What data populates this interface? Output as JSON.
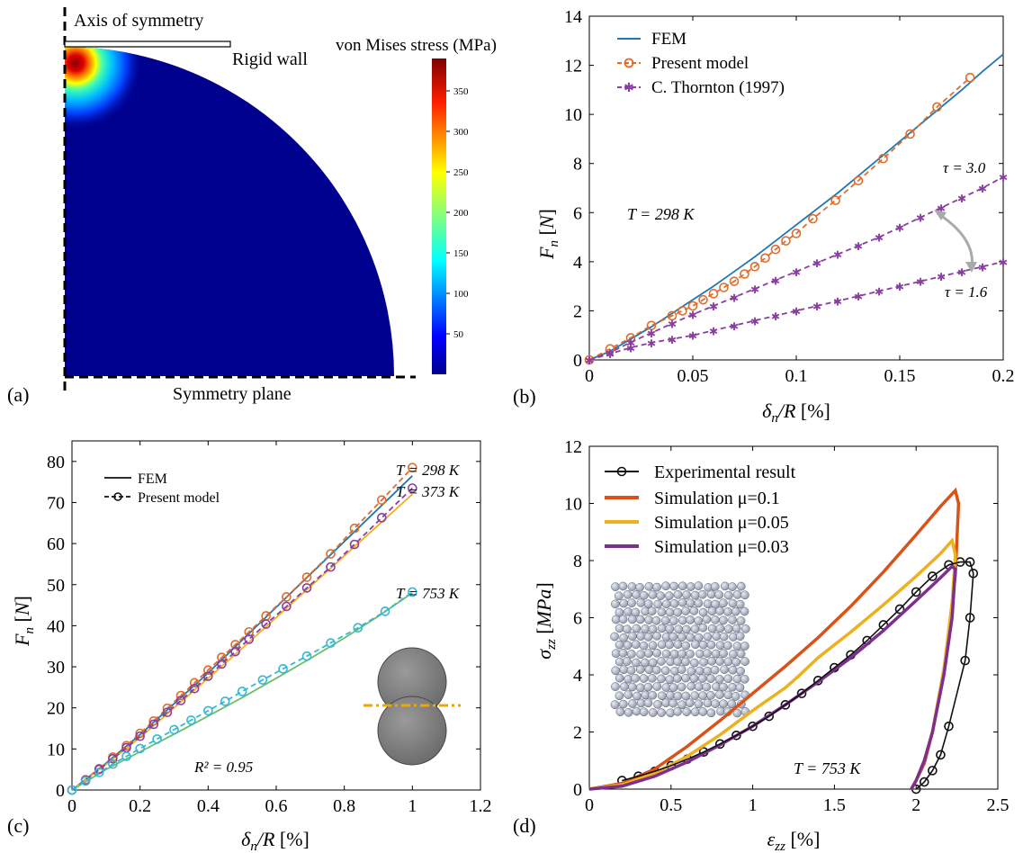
{
  "panels": {
    "a": {
      "label": "(a)",
      "axis_of_symmetry": "Axis of symmetry",
      "rigid_wall": "Rigid wall",
      "symmetry_plane": "Symmetry plane",
      "colorbar_title": "von Mises stress (MPa)",
      "colorbar_ticks": [
        "50",
        "100",
        "150",
        "200",
        "250",
        "300",
        "350"
      ],
      "colorbar_range": [
        0,
        390
      ],
      "colors": {
        "field": "#00008f",
        "hot": "#b40000"
      }
    },
    "b": {
      "label": "(b)",
      "annotation": "T = 298 K",
      "tau_high": "τ = 3.0",
      "tau_low": "τ = 1.6"
    },
    "c": {
      "label": "(c)",
      "r2": "R² = 0.95",
      "t298": "T = 298 K",
      "t373": "T = 373 K",
      "t753": "T = 753 K"
    },
    "d": {
      "label": "(d)",
      "annotation": "T = 753 K"
    }
  },
  "chart_data": [
    {
      "panel": "b",
      "type": "line",
      "xlabel": "δn/R [%]",
      "ylabel": "Fn [N]",
      "xlim": [
        0,
        0.2
      ],
      "ylim": [
        0,
        14
      ],
      "xticks": [
        "0",
        "0.05",
        "0.1",
        "0.15",
        "0.2"
      ],
      "yticks": [
        "0",
        "2",
        "4",
        "6",
        "8",
        "10",
        "12",
        "14"
      ],
      "legend_position": "top-left",
      "series": [
        {
          "name": "FEM",
          "style": "solid",
          "color": "#1f77b4",
          "x": [
            0,
            0.01,
            0.02,
            0.03,
            0.04,
            0.05,
            0.06,
            0.07,
            0.08,
            0.09,
            0.1,
            0.11,
            0.12,
            0.13,
            0.14,
            0.15,
            0.16,
            0.17,
            0.18,
            0.19,
            0.2
          ],
          "y": [
            0,
            0.35,
            0.85,
            1.35,
            1.9,
            2.45,
            3.0,
            3.6,
            4.2,
            4.85,
            5.5,
            6.15,
            6.8,
            7.5,
            8.2,
            8.9,
            9.6,
            10.3,
            11.0,
            11.75,
            12.45
          ]
        },
        {
          "name": "Present model",
          "style": "dashed-circle",
          "color": "#e06c2c",
          "x": [
            0,
            0.01,
            0.02,
            0.03,
            0.04,
            0.045,
            0.05,
            0.055,
            0.06,
            0.065,
            0.07,
            0.075,
            0.08,
            0.085,
            0.09,
            0.095,
            0.1,
            0.108,
            0.119,
            0.13,
            0.142,
            0.155,
            0.168,
            0.184
          ],
          "y": [
            0,
            0.45,
            0.9,
            1.4,
            1.8,
            2.0,
            2.2,
            2.45,
            2.7,
            2.95,
            3.2,
            3.5,
            3.8,
            4.15,
            4.5,
            4.85,
            5.15,
            5.75,
            6.5,
            7.3,
            8.2,
            9.2,
            10.3,
            11.5
          ]
        },
        {
          "name": "C. Thornton (1997)",
          "style": "dashed-star",
          "color": "#8a3fa0",
          "x": [
            0,
            0.01,
            0.02,
            0.03,
            0.04,
            0.05,
            0.06,
            0.07,
            0.08,
            0.09,
            0.1,
            0.11,
            0.12,
            0.13,
            0.14,
            0.15,
            0.16,
            0.17,
            0.18,
            0.19,
            0.2
          ],
          "y": [
            0,
            0.3,
            0.72,
            1.1,
            1.48,
            1.85,
            2.2,
            2.55,
            2.9,
            3.25,
            3.6,
            3.95,
            4.3,
            4.65,
            5.0,
            5.4,
            5.8,
            6.2,
            6.6,
            7.0,
            7.45
          ]
        },
        {
          "name": "",
          "style": "dashed-star",
          "color": "#8a3fa0",
          "x": [
            0,
            0.01,
            0.02,
            0.03,
            0.04,
            0.05,
            0.06,
            0.07,
            0.08,
            0.09,
            0.1,
            0.11,
            0.12,
            0.13,
            0.14,
            0.15,
            0.16,
            0.17,
            0.18,
            0.19,
            0.2
          ],
          "y": [
            0,
            0.25,
            0.5,
            0.7,
            0.85,
            1.0,
            1.2,
            1.4,
            1.6,
            1.8,
            2.0,
            2.2,
            2.4,
            2.6,
            2.8,
            3.0,
            3.2,
            3.4,
            3.6,
            3.8,
            4.0
          ]
        }
      ]
    },
    {
      "panel": "c",
      "type": "line",
      "xlabel": "δn/R [%]",
      "ylabel": "Fn [N]",
      "xlim": [
        0,
        1.2
      ],
      "ylim": [
        0,
        85
      ],
      "xticks": [
        "0",
        "0.2",
        "0.4",
        "0.6",
        "0.8",
        "1",
        "1.2"
      ],
      "yticks": [
        "0",
        "10",
        "20",
        "30",
        "40",
        "50",
        "60",
        "70",
        "80"
      ],
      "legend_position": "top-left",
      "legend": [
        "FEM",
        "Present model"
      ],
      "series": [
        {
          "name": "",
          "style": "solid",
          "color": "#1f77b4",
          "x": [
            0,
            0.1,
            0.2,
            0.3,
            0.4,
            0.5,
            0.6,
            0.7,
            0.8,
            0.9,
            1.0
          ],
          "y": [
            0,
            6.5,
            13.5,
            21.0,
            28.5,
            36.5,
            44.5,
            52.5,
            60.5,
            68.5,
            76.5
          ]
        },
        {
          "name": "",
          "style": "solid",
          "color": "#f2b01e",
          "x": [
            0,
            0.1,
            0.2,
            0.3,
            0.4,
            0.5,
            0.6,
            0.7,
            0.8,
            0.9,
            1.0
          ],
          "y": [
            0,
            6.2,
            12.8,
            20.0,
            27.2,
            34.5,
            42.0,
            49.5,
            57.0,
            64.5,
            72.0
          ]
        },
        {
          "name": "",
          "style": "solid",
          "color": "#6abf69",
          "x": [
            0,
            0.1,
            0.2,
            0.3,
            0.4,
            0.5,
            0.6,
            0.7,
            0.8,
            0.9,
            1.0
          ],
          "y": [
            0,
            5.0,
            9.3,
            13.6,
            18.0,
            22.5,
            27.2,
            32.0,
            37.0,
            42.3,
            48.0
          ]
        },
        {
          "name": "",
          "style": "dashed-circle",
          "color": "#e06c2c",
          "x": [
            0,
            0.04,
            0.08,
            0.12,
            0.16,
            0.2,
            0.24,
            0.28,
            0.32,
            0.36,
            0.4,
            0.44,
            0.48,
            0.52,
            0.57,
            0.63,
            0.69,
            0.76,
            0.83,
            0.91,
            1.0
          ],
          "y": [
            0,
            2.5,
            5.2,
            8.0,
            10.8,
            13.8,
            16.8,
            19.9,
            23.0,
            26.1,
            29.2,
            32.3,
            35.4,
            38.5,
            42.4,
            47.0,
            51.8,
            57.5,
            63.7,
            70.6,
            78.5
          ]
        },
        {
          "name": "",
          "style": "dashed-circle",
          "color": "#8a3fa0",
          "x": [
            0,
            0.04,
            0.08,
            0.12,
            0.16,
            0.2,
            0.24,
            0.28,
            0.32,
            0.36,
            0.4,
            0.44,
            0.48,
            0.52,
            0.57,
            0.63,
            0.69,
            0.76,
            0.83,
            0.91,
            1.0
          ],
          "y": [
            0,
            2.4,
            5.0,
            7.6,
            10.3,
            13.1,
            16.0,
            18.9,
            21.8,
            24.7,
            27.7,
            30.7,
            33.7,
            36.7,
            40.4,
            44.7,
            49.2,
            54.3,
            59.8,
            66.3,
            73.5
          ]
        },
        {
          "name": "",
          "style": "dashed-circle",
          "color": "#36b7d6",
          "x": [
            0,
            0.04,
            0.08,
            0.12,
            0.16,
            0.2,
            0.25,
            0.3,
            0.35,
            0.4,
            0.45,
            0.5,
            0.56,
            0.62,
            0.69,
            0.76,
            0.84,
            0.92,
            1.0
          ],
          "y": [
            0,
            2.2,
            4.3,
            6.3,
            8.2,
            10.1,
            12.4,
            14.7,
            17.0,
            19.3,
            21.6,
            24.0,
            26.8,
            29.5,
            32.6,
            35.8,
            39.5,
            43.5,
            48.2
          ]
        }
      ]
    },
    {
      "panel": "d",
      "type": "line",
      "xlabel": "εzz [%]",
      "ylabel": "σzz [MPa]",
      "xlim": [
        0,
        2.5
      ],
      "ylim": [
        0,
        12
      ],
      "xticks": [
        "0",
        "0.5",
        "1",
        "1.5",
        "2",
        "2.5"
      ],
      "yticks": [
        "0",
        "2",
        "4",
        "6",
        "8",
        "10",
        "12"
      ],
      "legend_position": "top-left",
      "series": [
        {
          "name": "Experimental result",
          "style": "solid-circle",
          "color": "#111111",
          "x": [
            0.2,
            0.3,
            0.4,
            0.5,
            0.6,
            0.7,
            0.8,
            0.9,
            1.0,
            1.1,
            1.2,
            1.3,
            1.4,
            1.5,
            1.6,
            1.7,
            1.8,
            1.9,
            2.0,
            2.1,
            2.2,
            2.27,
            2.33,
            2.35,
            2.33,
            2.3,
            2.2,
            2.15,
            2.1,
            2.05,
            2.0
          ],
          "y": [
            0.3,
            0.45,
            0.62,
            0.82,
            1.05,
            1.3,
            1.58,
            1.88,
            2.2,
            2.55,
            2.95,
            3.35,
            3.8,
            4.25,
            4.7,
            5.2,
            5.75,
            6.3,
            6.9,
            7.45,
            7.85,
            7.95,
            7.95,
            7.55,
            6.0,
            4.5,
            2.2,
            1.2,
            0.65,
            0.25,
            0.0
          ]
        },
        {
          "name": "Simulation μ=0.1",
          "style": "solid",
          "color": "#d95319",
          "x": [
            0,
            0.2,
            0.4,
            0.6,
            0.8,
            1.0,
            1.2,
            1.4,
            1.6,
            1.8,
            2.0,
            2.15,
            2.24,
            2.26,
            2.24,
            2.18,
            2.1,
            2.05,
            2.0,
            1.97
          ],
          "y": [
            0,
            0.2,
            0.7,
            1.5,
            2.4,
            3.35,
            4.3,
            5.3,
            6.4,
            7.6,
            8.9,
            9.9,
            10.45,
            10.0,
            7.5,
            4.5,
            2.0,
            0.9,
            0.3,
            0.0
          ]
        },
        {
          "name": "Simulation μ=0.05",
          "style": "solid",
          "color": "#edb120",
          "x": [
            0,
            0.2,
            0.4,
            0.6,
            0.8,
            1.0,
            1.2,
            1.28,
            1.4,
            1.6,
            1.8,
            2.0,
            2.15,
            2.22,
            2.24,
            2.22,
            2.17,
            2.1,
            2.05,
            2.0,
            1.97
          ],
          "y": [
            0,
            0.15,
            0.55,
            1.15,
            1.9,
            2.75,
            3.55,
            3.95,
            4.6,
            5.5,
            6.45,
            7.45,
            8.25,
            8.7,
            8.2,
            6.5,
            4.2,
            2.0,
            1.0,
            0.3,
            0.0
          ]
        },
        {
          "name": "Simulation μ=0.03",
          "style": "solid",
          "color": "#7e2f8e",
          "x": [
            0,
            0.2,
            0.4,
            0.6,
            0.8,
            1.0,
            1.2,
            1.4,
            1.6,
            1.8,
            2.0,
            2.15,
            2.22,
            2.24,
            2.22,
            2.17,
            2.1,
            2.05,
            2.0,
            1.97
          ],
          "y": [
            0,
            0.1,
            0.45,
            0.95,
            1.55,
            2.2,
            2.95,
            3.75,
            4.6,
            5.55,
            6.6,
            7.4,
            7.8,
            7.7,
            6.0,
            4.0,
            2.0,
            1.0,
            0.3,
            0.0
          ]
        }
      ]
    }
  ]
}
